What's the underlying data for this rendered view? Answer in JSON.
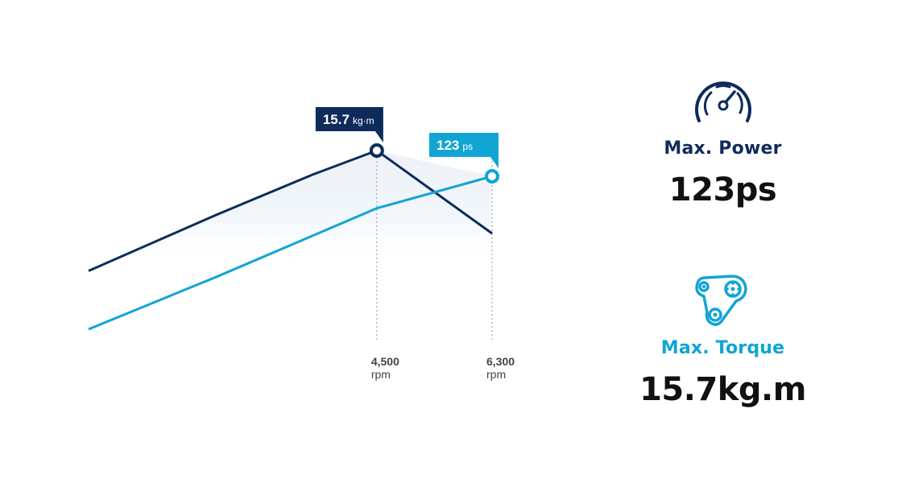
{
  "colors": {
    "torque": "#0d2c5c",
    "power": "#11a5d4",
    "tick": "#444444"
  },
  "chart_data": {
    "type": "line",
    "x_label_unit": "rpm",
    "x_ticks": [
      {
        "value": 4500,
        "label": "4,500",
        "unit": "rpm"
      },
      {
        "value": 6300,
        "label": "6,300",
        "unit": "rpm"
      }
    ],
    "series": [
      {
        "key": "torque",
        "points": [
          [
            0,
            11.2
          ],
          [
            2000,
            13.3
          ],
          [
            3500,
            14.8
          ],
          [
            4500,
            15.7
          ],
          [
            6300,
            12.6
          ]
        ],
        "peak": {
          "x": 4500,
          "value": "15.7",
          "unit": "kg·m"
        }
      },
      {
        "key": "power",
        "points": [
          [
            0,
            56
          ],
          [
            2000,
            79
          ],
          [
            4500,
            109
          ],
          [
            6300,
            123
          ]
        ],
        "peak": {
          "x": 6300,
          "value": "123",
          "unit": "ps"
        }
      }
    ]
  },
  "specs": {
    "power": {
      "icon": "speedometer-icon",
      "label": "Max. Power",
      "value": "123ps"
    },
    "torque": {
      "icon": "belt-pulley-icon",
      "label": "Max. Torque",
      "value": "15.7kg.m"
    }
  }
}
